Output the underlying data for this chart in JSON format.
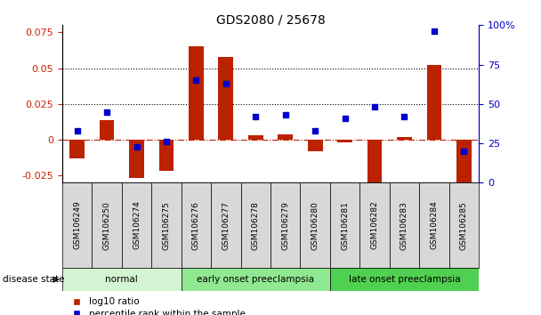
{
  "title": "GDS2080 / 25678",
  "samples": [
    "GSM106249",
    "GSM106250",
    "GSM106274",
    "GSM106275",
    "GSM106276",
    "GSM106277",
    "GSM106278",
    "GSM106279",
    "GSM106280",
    "GSM106281",
    "GSM106282",
    "GSM106283",
    "GSM106284",
    "GSM106285"
  ],
  "log10_ratio": [
    -0.013,
    0.014,
    -0.027,
    -0.022,
    0.065,
    0.058,
    0.003,
    0.004,
    -0.008,
    -0.002,
    -0.03,
    0.002,
    0.052,
    -0.03
  ],
  "percentile_rank_pct": [
    33,
    45,
    23,
    26,
    65,
    63,
    42,
    43,
    33,
    41,
    48,
    42,
    96,
    20
  ],
  "disease_groups": [
    {
      "label": "normal",
      "start": 0,
      "end": 4,
      "color": "#d4f5d4"
    },
    {
      "label": "early onset preeclampsia",
      "start": 4,
      "end": 9,
      "color": "#90e890"
    },
    {
      "label": "late onset preeclampsia",
      "start": 9,
      "end": 14,
      "color": "#50d050"
    }
  ],
  "bar_color": "#bb2200",
  "dot_color": "#0000cc",
  "left_ylim": [
    -0.03,
    0.08
  ],
  "right_ylim": [
    0,
    100
  ],
  "left_yticks": [
    -0.025,
    0,
    0.025,
    0.05,
    0.075
  ],
  "right_yticks": [
    0,
    25,
    50,
    75,
    100
  ],
  "hlines": [
    0.025,
    0.05
  ],
  "tick_label_color_left": "#cc2200",
  "tick_label_color_right": "#0000cc",
  "legend_items": [
    "log10 ratio",
    "percentile rank within the sample"
  ],
  "disease_state_label": "disease state"
}
